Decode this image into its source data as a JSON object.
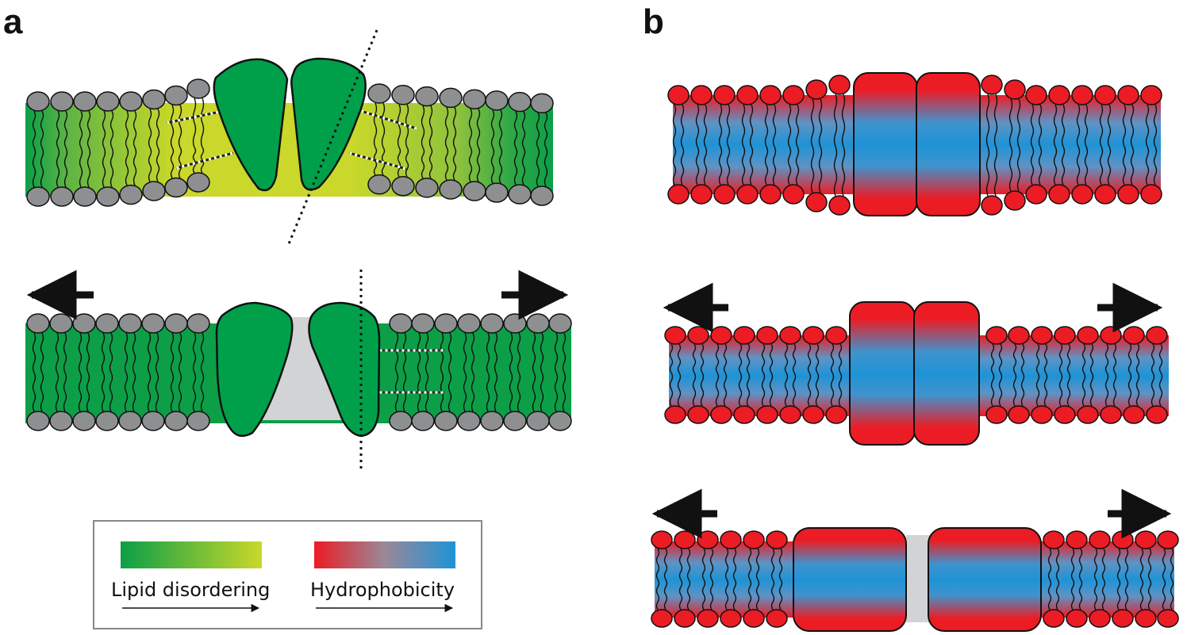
{
  "panels": {
    "a": {
      "label": "a"
    },
    "b": {
      "label": "b"
    }
  },
  "legend": {
    "disorder_label": "Lipid disordering",
    "hydro_label": "Hydrophobicity"
  },
  "colors": {
    "ordered": "#0c9f47",
    "disordered": "#c9d82a",
    "hydrophobic": "#1e93d6",
    "hydrophilic": "#ec1c24",
    "head_gray": "#8e8f91",
    "void_gray": "#d2d3d5",
    "protein_green": "#00a04b"
  }
}
